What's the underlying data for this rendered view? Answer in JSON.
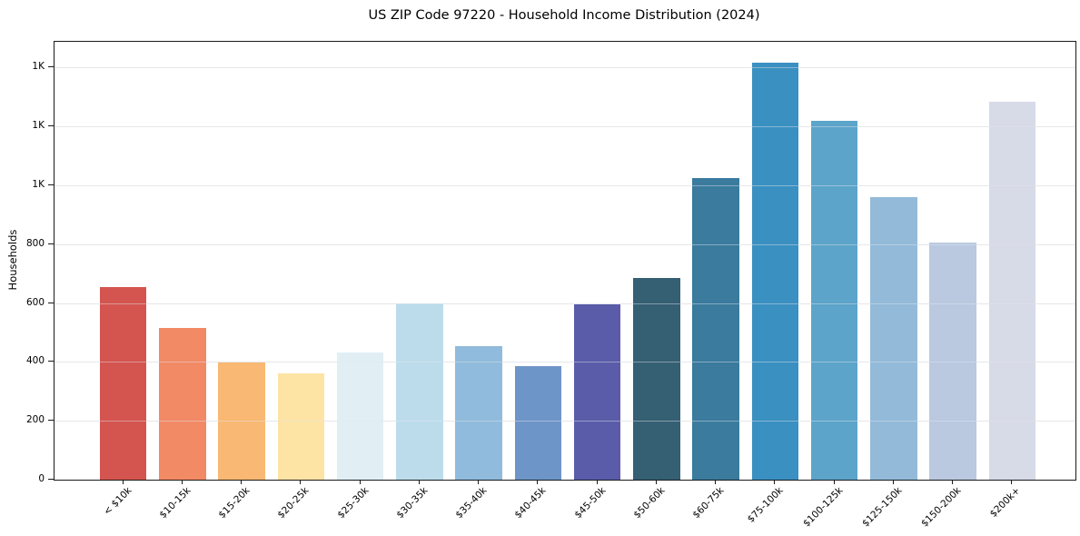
{
  "chart_data": {
    "type": "bar",
    "title": "US ZIP Code 97220 - Household Income Distribution (2024)",
    "xlabel": "",
    "ylabel": "Households",
    "categories": [
      "< $10k",
      "$10-15k",
      "$15-20k",
      "$20-25k",
      "$25-30k",
      "$30-35k",
      "$35-40k",
      "$40-45k",
      "$45-50k",
      "$50-60k",
      "$60-75k",
      "$75-100k",
      "$100-125k",
      "$125-150k",
      "$150-200k",
      "$200k+"
    ],
    "values": [
      653,
      516,
      397,
      362,
      431,
      598,
      453,
      385,
      597,
      684,
      1023,
      1415,
      1220,
      961,
      804,
      1282
    ],
    "bar_colors": [
      "#d4544f",
      "#f28a66",
      "#f9b873",
      "#fde3a4",
      "#e1eff5",
      "#bcdcec",
      "#90bbdc",
      "#6e95c8",
      "#5a5caa",
      "#355f73",
      "#3a7b9e",
      "#3a90c1",
      "#5ca4ca",
      "#93bad9",
      "#bac9e0",
      "#d7dae7"
    ],
    "ylim": [
      0,
      1487
    ],
    "yticks": {
      "values": [
        0,
        200,
        400,
        600,
        800,
        1000,
        1200,
        1400
      ],
      "labels": [
        "0",
        "200",
        "400",
        "600",
        "800",
        "1K",
        "1K",
        "1K"
      ]
    },
    "grid": "horizontal",
    "legend_position": "none"
  },
  "colors": {
    "background": "#ffffff",
    "grid": "#e7e7e7",
    "spine": "#1a1a1a",
    "text": "#000000"
  }
}
